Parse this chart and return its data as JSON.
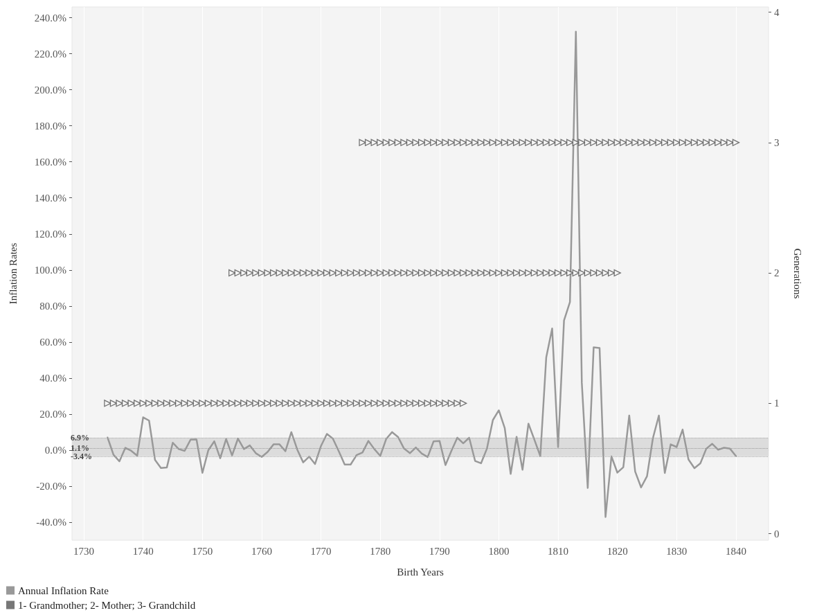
{
  "chart_data": {
    "type": "line",
    "xlabel": "Birth Years",
    "ylabel": "Inflation Rates",
    "y2label": "Generations",
    "xlim": [
      1728,
      1845.5
    ],
    "xticks": [
      1730,
      1740,
      1750,
      1760,
      1770,
      1780,
      1790,
      1800,
      1810,
      1820,
      1830,
      1840
    ],
    "ylim": [
      -50,
      246
    ],
    "yticks": [
      {
        "value": -40,
        "label": "-40.0%"
      },
      {
        "value": -20,
        "label": "-20.0%"
      },
      {
        "value": 0,
        "label": "0.0%"
      },
      {
        "value": 20,
        "label": "20.0%"
      },
      {
        "value": 40,
        "label": "40.0%"
      },
      {
        "value": 60,
        "label": "60.0%"
      },
      {
        "value": 80,
        "label": "80.0%"
      },
      {
        "value": 100,
        "label": "100.0%"
      },
      {
        "value": 120,
        "label": "120.0%"
      },
      {
        "value": 140,
        "label": "140.0%"
      },
      {
        "value": 160,
        "label": "160.0%"
      },
      {
        "value": 180,
        "label": "180.0%"
      },
      {
        "value": 200,
        "label": "200.0%"
      },
      {
        "value": 220,
        "label": "220.0%"
      },
      {
        "value": 240,
        "label": "240.0%"
      }
    ],
    "y2lim": [
      -0.05,
      4.04
    ],
    "y2ticks": [
      0,
      1,
      2,
      3,
      4
    ],
    "grid": "x",
    "legend": "bottom left",
    "bands": [
      {
        "axis": "y",
        "from": -3.4,
        "to": 6.9,
        "color": "#dcdcdc"
      }
    ],
    "ref_lines": [
      {
        "axis": "y",
        "value": 6.9,
        "label": "6.9%",
        "color": "#aaaaaa",
        "line_style": "dotted"
      },
      {
        "axis": "y",
        "value": 1.1,
        "label": "1.1%",
        "color": "#999999",
        "line_style": "dotted"
      },
      {
        "axis": "y",
        "value": -3.4,
        "label": "-3.4%",
        "color": "#aaaaaa",
        "line_style": "dotted"
      }
    ],
    "series": [
      {
        "name": "Annual Inflation Rate",
        "color": "#999999",
        "marker": "none",
        "line_style": "solid",
        "x": [
          1734,
          1735,
          1736,
          1737,
          1738,
          1739,
          1740,
          1741,
          1742,
          1743,
          1744,
          1745,
          1746,
          1747,
          1748,
          1749,
          1750,
          1751,
          1752,
          1753,
          1754,
          1755,
          1756,
          1757,
          1758,
          1759,
          1760,
          1761,
          1762,
          1763,
          1764,
          1765,
          1766,
          1767,
          1768,
          1769,
          1770,
          1771,
          1772,
          1773,
          1774,
          1775,
          1776,
          1777,
          1778,
          1779,
          1780,
          1781,
          1782,
          1783,
          1784,
          1785,
          1786,
          1787,
          1788,
          1789,
          1790,
          1791,
          1792,
          1793,
          1794,
          1795,
          1796,
          1797,
          1798,
          1799,
          1800,
          1801,
          1802,
          1803,
          1804,
          1805,
          1806,
          1807,
          1808,
          1809,
          1810,
          1811,
          1812,
          1813,
          1814,
          1815,
          1816,
          1817,
          1818,
          1819,
          1820,
          1821,
          1822,
          1823,
          1824,
          1825,
          1826,
          1827,
          1828,
          1829,
          1830,
          1831,
          1832,
          1833,
          1834,
          1835,
          1836,
          1837,
          1838,
          1839,
          1840
        ],
        "values": [
          7.0,
          -2.6,
          -6.2,
          1.3,
          -0.4,
          -3.1,
          18.2,
          16.4,
          -5.4,
          -9.9,
          -9.6,
          4.1,
          0.6,
          -0.4,
          5.8,
          5.9,
          -12.6,
          0,
          4.9,
          -4.5,
          6.2,
          -2.9,
          6.4,
          0.6,
          2.6,
          -1.7,
          -3.8,
          -1.0,
          3.2,
          3.2,
          -0.6,
          10.0,
          0.3,
          -6.8,
          -3.6,
          -7.7,
          2.3,
          9.0,
          6.4,
          -0.6,
          -8.0,
          -8.0,
          -2.8,
          -1.3,
          5.1,
          0.6,
          -3.2,
          6.2,
          10.0,
          7.3,
          0.9,
          -1.7,
          1.5,
          -1.9,
          -3.8,
          4.9,
          5.1,
          -8.3,
          -0.4,
          6.9,
          3.8,
          6.9,
          -6.0,
          -7.3,
          0.9,
          16.7,
          22.1,
          12.2,
          -13.2,
          7.4,
          -10.9,
          14.7,
          5.8,
          -3.3,
          51.5,
          67.5,
          1.7,
          72.0,
          82.2,
          232.3,
          37.5,
          -21.0,
          57.1,
          56.7,
          -37.1,
          -3.5,
          -12.5,
          -9.5,
          19.2,
          -11.9,
          -20.7,
          -14.5,
          6.7,
          19.2,
          -12.7,
          3.2,
          1.7,
          11.4,
          -5.2,
          -10.0,
          -7.3,
          0.8,
          3.5,
          0.2,
          1.3,
          0.8,
          -3.3
        ]
      },
      {
        "name": "1- Grandmother; 2- Mother; 3- Grandchild",
        "type": "scatter",
        "axis": "y2",
        "color": "#555555",
        "marker": "triangle",
        "x": [
          1734,
          1735,
          1736,
          1737,
          1738,
          1739,
          1740,
          1741,
          1742,
          1743,
          1744,
          1745,
          1746,
          1747,
          1748,
          1749,
          1750,
          1751,
          1752,
          1753,
          1754,
          1755,
          1756,
          1757,
          1758,
          1759,
          1760,
          1761,
          1762,
          1763,
          1764,
          1765,
          1766,
          1767,
          1768,
          1769,
          1770,
          1771,
          1772,
          1773,
          1774,
          1775,
          1776,
          1777,
          1778,
          1779,
          1780,
          1781,
          1782,
          1783,
          1784,
          1785,
          1786,
          1787,
          1788,
          1789,
          1790,
          1791,
          1792,
          1793,
          1794,
          1755,
          1756,
          1757,
          1758,
          1759,
          1760,
          1761,
          1762,
          1763,
          1764,
          1765,
          1766,
          1767,
          1768,
          1769,
          1770,
          1771,
          1772,
          1773,
          1774,
          1775,
          1776,
          1777,
          1778,
          1779,
          1780,
          1781,
          1782,
          1783,
          1784,
          1785,
          1786,
          1787,
          1788,
          1789,
          1790,
          1791,
          1792,
          1793,
          1794,
          1795,
          1796,
          1797,
          1798,
          1799,
          1800,
          1801,
          1802,
          1803,
          1804,
          1805,
          1806,
          1807,
          1808,
          1809,
          1810,
          1811,
          1812,
          1813,
          1814,
          1815,
          1816,
          1817,
          1818,
          1819,
          1820,
          1777,
          1778,
          1779,
          1780,
          1781,
          1782,
          1783,
          1784,
          1785,
          1786,
          1787,
          1788,
          1789,
          1790,
          1791,
          1792,
          1793,
          1794,
          1795,
          1796,
          1797,
          1798,
          1799,
          1800,
          1801,
          1802,
          1803,
          1804,
          1805,
          1806,
          1807,
          1808,
          1809,
          1810,
          1811,
          1812,
          1813,
          1814,
          1815,
          1816,
          1817,
          1818,
          1819,
          1820,
          1821,
          1822,
          1823,
          1824,
          1825,
          1826,
          1827,
          1828,
          1829,
          1830,
          1831,
          1832,
          1833,
          1834,
          1835,
          1836,
          1837,
          1838,
          1839,
          1840
        ],
        "values": [
          1,
          1,
          1,
          1,
          1,
          1,
          1,
          1,
          1,
          1,
          1,
          1,
          1,
          1,
          1,
          1,
          1,
          1,
          1,
          1,
          1,
          1,
          1,
          1,
          1,
          1,
          1,
          1,
          1,
          1,
          1,
          1,
          1,
          1,
          1,
          1,
          1,
          1,
          1,
          1,
          1,
          1,
          1,
          1,
          1,
          1,
          1,
          1,
          1,
          1,
          1,
          1,
          1,
          1,
          1,
          1,
          1,
          1,
          1,
          1,
          1,
          2,
          2,
          2,
          2,
          2,
          2,
          2,
          2,
          2,
          2,
          2,
          2,
          2,
          2,
          2,
          2,
          2,
          2,
          2,
          2,
          2,
          2,
          2,
          2,
          2,
          2,
          2,
          2,
          2,
          2,
          2,
          2,
          2,
          2,
          2,
          2,
          2,
          2,
          2,
          2,
          2,
          2,
          2,
          2,
          2,
          2,
          2,
          2,
          2,
          2,
          2,
          2,
          2,
          2,
          2,
          2,
          2,
          2,
          2,
          2,
          2,
          2,
          2,
          2,
          2,
          2,
          3,
          3,
          3,
          3,
          3,
          3,
          3,
          3,
          3,
          3,
          3,
          3,
          3,
          3,
          3,
          3,
          3,
          3,
          3,
          3,
          3,
          3,
          3,
          3,
          3,
          3,
          3,
          3,
          3,
          3,
          3,
          3,
          3,
          3,
          3,
          3,
          3,
          3,
          3,
          3,
          3,
          3,
          3,
          3,
          3,
          3,
          3,
          3,
          3,
          3,
          3,
          3,
          3,
          3,
          3,
          3,
          3,
          3,
          3,
          3,
          3,
          3,
          3,
          3
        ]
      }
    ]
  }
}
